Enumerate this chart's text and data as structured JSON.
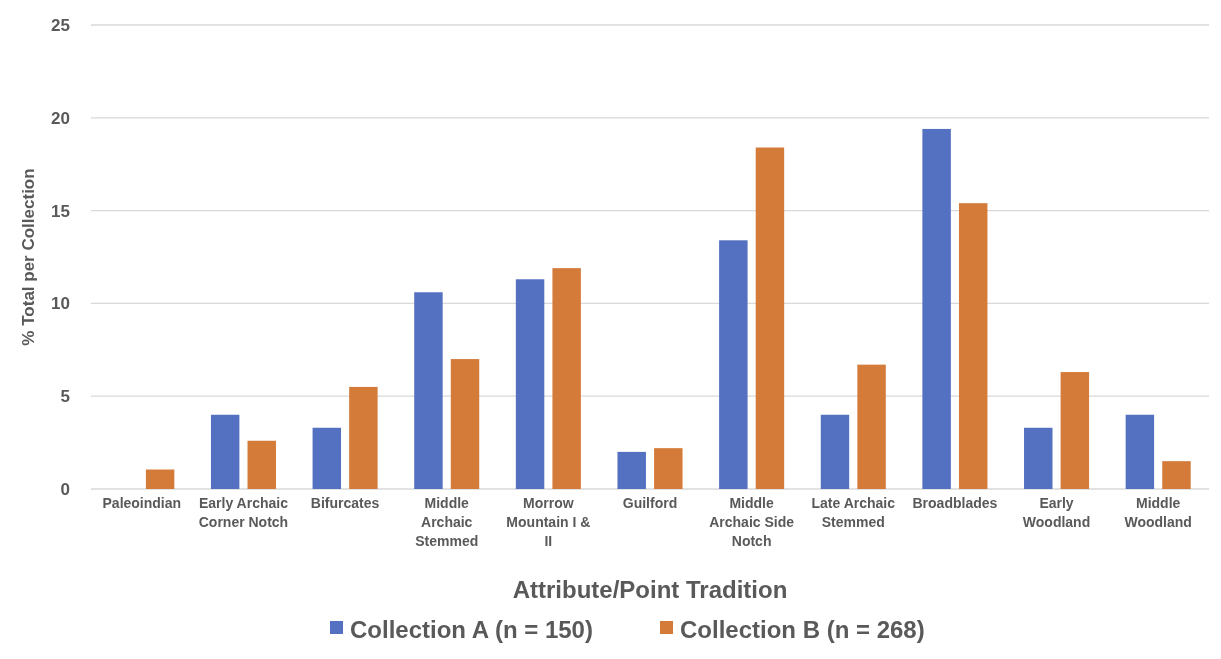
{
  "chart_data": {
    "type": "bar",
    "xlabel": "Attribute/Point Tradition",
    "ylabel": "% Total per Collection",
    "categories": [
      "Paleoindian",
      "Early Archaic Corner Notch",
      "Bifurcates",
      "Middle Archaic Stemmed",
      "Morrow Mountain I & II",
      "Guilford",
      "Middle Archaic Side Notch",
      "Late Archaic Stemmed",
      "Broadblades",
      "Early Woodland",
      "Middle Woodland"
    ],
    "series": [
      {
        "name": "Collection A (n = 150)",
        "color": "#5470c0",
        "values": [
          0,
          4.0,
          3.3,
          10.6,
          11.3,
          2.0,
          13.4,
          4.0,
          19.4,
          3.3,
          4.0
        ]
      },
      {
        "name": "Collection B (n = 268)",
        "color": "#d47b3a",
        "values": [
          1.05,
          2.6,
          5.5,
          7.0,
          11.9,
          2.2,
          18.4,
          6.7,
          15.4,
          6.3,
          1.5
        ]
      }
    ],
    "ylim": [
      0,
      25
    ],
    "yticks": [
      0,
      5,
      10,
      15,
      20,
      25
    ],
    "grid": "y",
    "legend": "bottom"
  }
}
